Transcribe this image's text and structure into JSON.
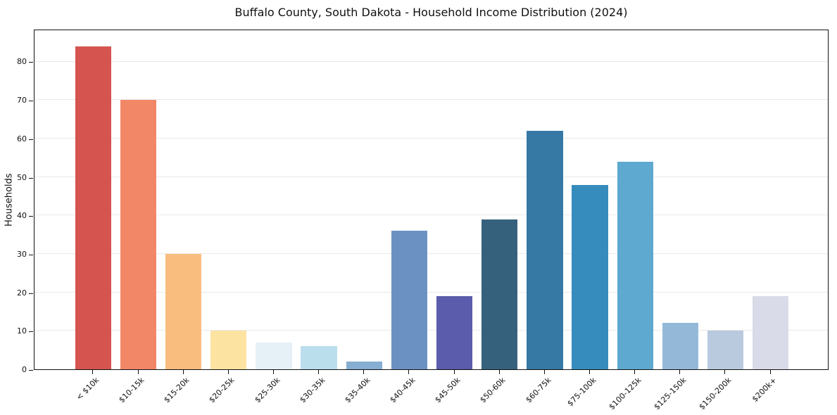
{
  "chart_data": {
    "type": "bar",
    "title": "Buffalo County, South Dakota - Household Income Distribution (2024)",
    "xlabel": "",
    "ylabel": "Households",
    "categories": [
      "< $10k",
      "$10-15k",
      "$15-20k",
      "$20-25k",
      "$25-30k",
      "$30-35k",
      "$35-40k",
      "$40-45k",
      "$45-50k",
      "$50-60k",
      "$60-75k",
      "$75-100k",
      "$100-125k",
      "$125-150k",
      "$150-200k",
      "$200k+"
    ],
    "values": [
      84,
      70,
      30,
      10,
      7,
      6,
      2,
      36,
      19,
      39,
      62,
      48,
      54,
      12,
      10,
      19
    ],
    "bar_colors": [
      "#d6544f",
      "#f28767",
      "#f9bd7d",
      "#fce3a2",
      "#e5f1f7",
      "#bbdeec",
      "#86add2",
      "#6b91c2",
      "#5b5cab",
      "#36617c",
      "#3579a4",
      "#368dbd",
      "#5ea9cf",
      "#94b9d8",
      "#b9cade",
      "#d9dbe8"
    ],
    "yticks": [
      0,
      10,
      20,
      30,
      40,
      50,
      60,
      70,
      80
    ],
    "ylim": [
      0,
      88.5
    ],
    "grid": "horizontal",
    "gridline_color": "#e9e9e9",
    "axis_color": "#111111",
    "background_color": "#ffffff",
    "legend": "none"
  }
}
